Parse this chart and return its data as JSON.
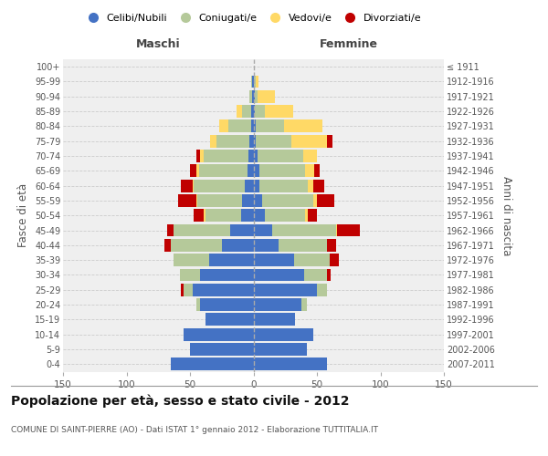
{
  "age_groups": [
    "0-4",
    "5-9",
    "10-14",
    "15-19",
    "20-24",
    "25-29",
    "30-34",
    "35-39",
    "40-44",
    "45-49",
    "50-54",
    "55-59",
    "60-64",
    "65-69",
    "70-74",
    "75-79",
    "80-84",
    "85-89",
    "90-94",
    "95-99",
    "100+"
  ],
  "birth_years": [
    "2007-2011",
    "2002-2006",
    "1997-2001",
    "1992-1996",
    "1987-1991",
    "1982-1986",
    "1977-1981",
    "1972-1976",
    "1967-1971",
    "1962-1966",
    "1957-1961",
    "1952-1956",
    "1947-1951",
    "1942-1946",
    "1937-1941",
    "1932-1936",
    "1927-1931",
    "1922-1926",
    "1917-1921",
    "1912-1916",
    "≤ 1911"
  ],
  "male_celibi": [
    65,
    50,
    55,
    38,
    42,
    48,
    42,
    35,
    25,
    18,
    10,
    9,
    7,
    5,
    4,
    3,
    2,
    2,
    1,
    1,
    0
  ],
  "male_coniugati": [
    0,
    0,
    0,
    0,
    3,
    7,
    16,
    28,
    40,
    45,
    28,
    35,
    40,
    38,
    35,
    26,
    18,
    7,
    2,
    1,
    0
  ],
  "male_vedovi": [
    0,
    0,
    0,
    0,
    0,
    0,
    0,
    0,
    0,
    0,
    1,
    1,
    1,
    2,
    3,
    5,
    7,
    4,
    0,
    0,
    0
  ],
  "male_divorziati": [
    0,
    0,
    0,
    0,
    0,
    2,
    0,
    0,
    5,
    5,
    8,
    14,
    9,
    5,
    3,
    0,
    0,
    0,
    0,
    0,
    0
  ],
  "female_nubili": [
    58,
    42,
    47,
    33,
    38,
    50,
    40,
    32,
    20,
    15,
    9,
    7,
    5,
    5,
    3,
    2,
    2,
    1,
    1,
    0,
    0
  ],
  "female_coniugate": [
    0,
    0,
    0,
    0,
    4,
    8,
    18,
    28,
    38,
    50,
    32,
    40,
    38,
    36,
    36,
    28,
    22,
    8,
    2,
    2,
    0
  ],
  "female_vedove": [
    0,
    0,
    0,
    0,
    0,
    0,
    0,
    0,
    0,
    1,
    2,
    3,
    4,
    7,
    11,
    28,
    30,
    22,
    14,
    2,
    0
  ],
  "female_divorziate": [
    0,
    0,
    0,
    0,
    0,
    0,
    3,
    7,
    7,
    18,
    7,
    14,
    9,
    4,
    0,
    4,
    0,
    0,
    0,
    0,
    0
  ],
  "colors_celibi": "#4472c4",
  "colors_coniugati": "#b5c99a",
  "colors_vedovi": "#ffd966",
  "colors_divorziati": "#c00000",
  "title": "Popolazione per età, sesso e stato civile - 2012",
  "subtitle": "COMUNE DI SAINT-PIERRE (AO) - Dati ISTAT 1° gennaio 2012 - Elaborazione TUTTITALIA.IT",
  "ylabel_left": "Fasce di età",
  "ylabel_right": "Anni di nascita",
  "xlim": 150,
  "bg_color": "#efefef"
}
